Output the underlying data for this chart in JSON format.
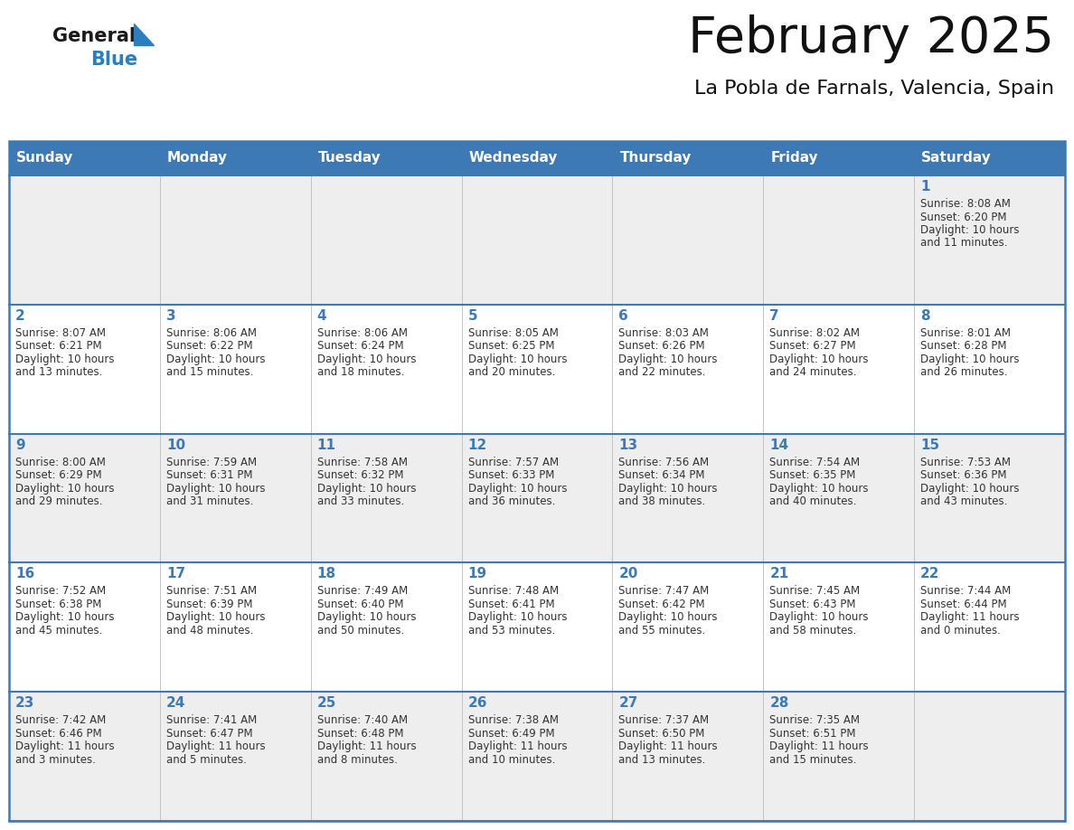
{
  "title": "February 2025",
  "subtitle": "La Pobla de Farnals, Valencia, Spain",
  "header_bg": "#3d7ab5",
  "header_text": "#ffffff",
  "row_bg_odd": "#eeeeee",
  "row_bg_even": "#ffffff",
  "day_names": [
    "Sunday",
    "Monday",
    "Tuesday",
    "Wednesday",
    "Thursday",
    "Friday",
    "Saturday"
  ],
  "cell_border_color": "#3d7ab5",
  "day_number_color": "#3d7ab5",
  "info_text_color": "#333333",
  "logo_general_color": "#1a1a1a",
  "logo_blue_color": "#2a7fc1",
  "days": [
    {
      "day": 1,
      "col": 6,
      "row": 0,
      "sunrise": "8:08 AM",
      "sunset": "6:20 PM",
      "daylight": "10 hours",
      "daylight2": "and 11 minutes."
    },
    {
      "day": 2,
      "col": 0,
      "row": 1,
      "sunrise": "8:07 AM",
      "sunset": "6:21 PM",
      "daylight": "10 hours",
      "daylight2": "and 13 minutes."
    },
    {
      "day": 3,
      "col": 1,
      "row": 1,
      "sunrise": "8:06 AM",
      "sunset": "6:22 PM",
      "daylight": "10 hours",
      "daylight2": "and 15 minutes."
    },
    {
      "day": 4,
      "col": 2,
      "row": 1,
      "sunrise": "8:06 AM",
      "sunset": "6:24 PM",
      "daylight": "10 hours",
      "daylight2": "and 18 minutes."
    },
    {
      "day": 5,
      "col": 3,
      "row": 1,
      "sunrise": "8:05 AM",
      "sunset": "6:25 PM",
      "daylight": "10 hours",
      "daylight2": "and 20 minutes."
    },
    {
      "day": 6,
      "col": 4,
      "row": 1,
      "sunrise": "8:03 AM",
      "sunset": "6:26 PM",
      "daylight": "10 hours",
      "daylight2": "and 22 minutes."
    },
    {
      "day": 7,
      "col": 5,
      "row": 1,
      "sunrise": "8:02 AM",
      "sunset": "6:27 PM",
      "daylight": "10 hours",
      "daylight2": "and 24 minutes."
    },
    {
      "day": 8,
      "col": 6,
      "row": 1,
      "sunrise": "8:01 AM",
      "sunset": "6:28 PM",
      "daylight": "10 hours",
      "daylight2": "and 26 minutes."
    },
    {
      "day": 9,
      "col": 0,
      "row": 2,
      "sunrise": "8:00 AM",
      "sunset": "6:29 PM",
      "daylight": "10 hours",
      "daylight2": "and 29 minutes."
    },
    {
      "day": 10,
      "col": 1,
      "row": 2,
      "sunrise": "7:59 AM",
      "sunset": "6:31 PM",
      "daylight": "10 hours",
      "daylight2": "and 31 minutes."
    },
    {
      "day": 11,
      "col": 2,
      "row": 2,
      "sunrise": "7:58 AM",
      "sunset": "6:32 PM",
      "daylight": "10 hours",
      "daylight2": "and 33 minutes."
    },
    {
      "day": 12,
      "col": 3,
      "row": 2,
      "sunrise": "7:57 AM",
      "sunset": "6:33 PM",
      "daylight": "10 hours",
      "daylight2": "and 36 minutes."
    },
    {
      "day": 13,
      "col": 4,
      "row": 2,
      "sunrise": "7:56 AM",
      "sunset": "6:34 PM",
      "daylight": "10 hours",
      "daylight2": "and 38 minutes."
    },
    {
      "day": 14,
      "col": 5,
      "row": 2,
      "sunrise": "7:54 AM",
      "sunset": "6:35 PM",
      "daylight": "10 hours",
      "daylight2": "and 40 minutes."
    },
    {
      "day": 15,
      "col": 6,
      "row": 2,
      "sunrise": "7:53 AM",
      "sunset": "6:36 PM",
      "daylight": "10 hours",
      "daylight2": "and 43 minutes."
    },
    {
      "day": 16,
      "col": 0,
      "row": 3,
      "sunrise": "7:52 AM",
      "sunset": "6:38 PM",
      "daylight": "10 hours",
      "daylight2": "and 45 minutes."
    },
    {
      "day": 17,
      "col": 1,
      "row": 3,
      "sunrise": "7:51 AM",
      "sunset": "6:39 PM",
      "daylight": "10 hours",
      "daylight2": "and 48 minutes."
    },
    {
      "day": 18,
      "col": 2,
      "row": 3,
      "sunrise": "7:49 AM",
      "sunset": "6:40 PM",
      "daylight": "10 hours",
      "daylight2": "and 50 minutes."
    },
    {
      "day": 19,
      "col": 3,
      "row": 3,
      "sunrise": "7:48 AM",
      "sunset": "6:41 PM",
      "daylight": "10 hours",
      "daylight2": "and 53 minutes."
    },
    {
      "day": 20,
      "col": 4,
      "row": 3,
      "sunrise": "7:47 AM",
      "sunset": "6:42 PM",
      "daylight": "10 hours",
      "daylight2": "and 55 minutes."
    },
    {
      "day": 21,
      "col": 5,
      "row": 3,
      "sunrise": "7:45 AM",
      "sunset": "6:43 PM",
      "daylight": "10 hours",
      "daylight2": "and 58 minutes."
    },
    {
      "day": 22,
      "col": 6,
      "row": 3,
      "sunrise": "7:44 AM",
      "sunset": "6:44 PM",
      "daylight": "11 hours",
      "daylight2": "and 0 minutes."
    },
    {
      "day": 23,
      "col": 0,
      "row": 4,
      "sunrise": "7:42 AM",
      "sunset": "6:46 PM",
      "daylight": "11 hours",
      "daylight2": "and 3 minutes."
    },
    {
      "day": 24,
      "col": 1,
      "row": 4,
      "sunrise": "7:41 AM",
      "sunset": "6:47 PM",
      "daylight": "11 hours",
      "daylight2": "and 5 minutes."
    },
    {
      "day": 25,
      "col": 2,
      "row": 4,
      "sunrise": "7:40 AM",
      "sunset": "6:48 PM",
      "daylight": "11 hours",
      "daylight2": "and 8 minutes."
    },
    {
      "day": 26,
      "col": 3,
      "row": 4,
      "sunrise": "7:38 AM",
      "sunset": "6:49 PM",
      "daylight": "11 hours",
      "daylight2": "and 10 minutes."
    },
    {
      "day": 27,
      "col": 4,
      "row": 4,
      "sunrise": "7:37 AM",
      "sunset": "6:50 PM",
      "daylight": "11 hours",
      "daylight2": "and 13 minutes."
    },
    {
      "day": 28,
      "col": 5,
      "row": 4,
      "sunrise": "7:35 AM",
      "sunset": "6:51 PM",
      "daylight": "11 hours",
      "daylight2": "and 15 minutes."
    }
  ]
}
